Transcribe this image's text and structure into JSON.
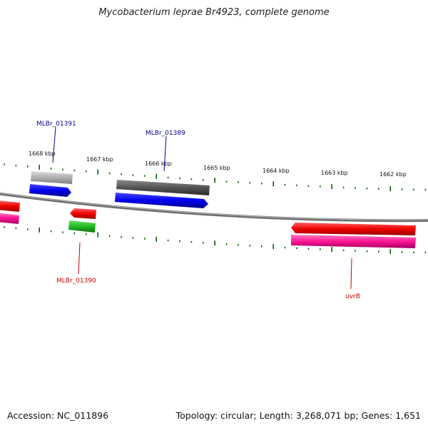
{
  "title": "Mycobacterium leprae Br4923, complete genome",
  "footer": {
    "accession": "Accession: NC_011896",
    "summary": "Topology: circular; Length: 3,268,071 bp; Genes: 1,651"
  },
  "scale_labels": [
    "1668 kbp",
    "1667 kbp",
    "1666 kbp",
    "1665 kbp",
    "1664 kbp",
    "1663 kbp",
    "1662 kbp"
  ],
  "gene_labels": {
    "mlbr_01391": "MLBr_01391",
    "mlbr_01389": "MLBr_01389",
    "mlbr_01390": "MLBr_01390",
    "uvrb": "uvrB"
  },
  "colors": {
    "label_blue": "#00008b",
    "label_red": "#cc0000",
    "tick_green": "#006400",
    "backbone": "#808080",
    "cds_blue": "#0000ee",
    "cds_red": "#ee0000",
    "cds_pink": "#ff1493",
    "cds_green": "#22bb22",
    "cds_gray": "#555555",
    "cds_lightgray": "#b0b0b0"
  }
}
